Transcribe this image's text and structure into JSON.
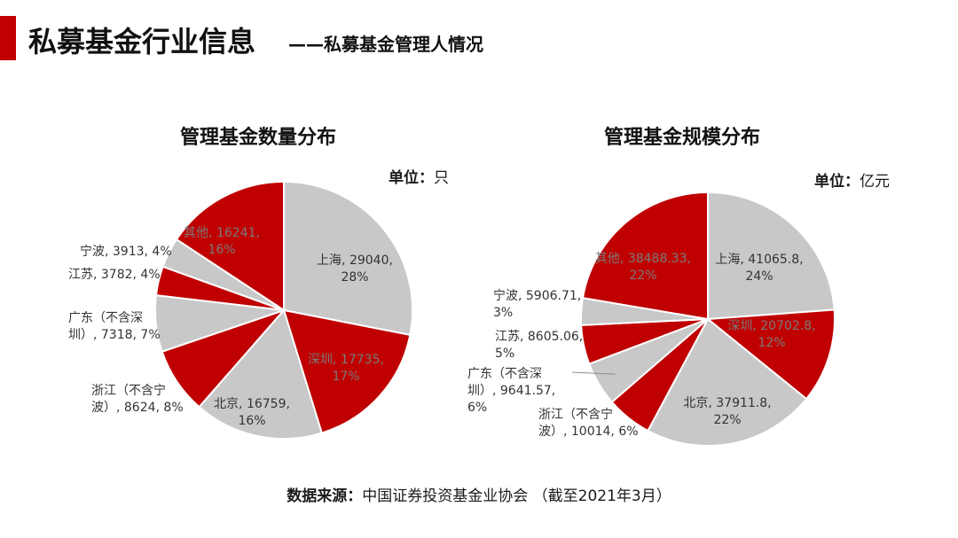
{
  "header": {
    "title": "私募基金行业信息",
    "subtitle": "——私募基金管理人情况"
  },
  "footer": {
    "source_label": "数据来源：",
    "source_text": "中国证券投资基金业协会 （截至2021年3月）"
  },
  "colors": {
    "red": "#c00000",
    "gray": "#c8c8c8",
    "accent": "#c00000"
  },
  "chart_data": [
    {
      "type": "pie",
      "title": "管理基金数量分布",
      "unit_label": "单位：",
      "unit_value": "只",
      "slices": [
        {
          "name": "上海",
          "value": 29040,
          "percent": "28%",
          "color": "gray",
          "label_lines": [
            "上海, 29040,",
            "28%"
          ]
        },
        {
          "name": "深圳",
          "value": 17735,
          "percent": "17%",
          "color": "red",
          "label_lines": [
            "深圳, 17735,",
            "17%"
          ]
        },
        {
          "name": "北京",
          "value": 16759,
          "percent": "16%",
          "color": "gray",
          "label_lines": [
            "北京, 16759,",
            "16%"
          ]
        },
        {
          "name": "浙江（不含宁波）",
          "value": 8624,
          "percent": "8%",
          "color": "red",
          "label_lines": [
            "浙江（不含宁",
            "波）, 8624, 8%"
          ]
        },
        {
          "name": "广东（不含深圳）",
          "value": 7318,
          "percent": "7%",
          "color": "gray",
          "label_lines": [
            "广东（不含深",
            "圳）, 7318, 7%"
          ]
        },
        {
          "name": "江苏",
          "value": 3782,
          "percent": "4%",
          "color": "red",
          "label_lines": [
            "江苏, 3782, 4%"
          ]
        },
        {
          "name": "宁波",
          "value": 3913,
          "percent": "4%",
          "color": "gray",
          "label_lines": [
            "宁波, 3913, 4%"
          ]
        },
        {
          "name": "其他",
          "value": 16241,
          "percent": "16%",
          "color": "red",
          "label_lines": [
            "其他, 16241,",
            "16%"
          ]
        }
      ]
    },
    {
      "type": "pie",
      "title": "管理基金规模分布",
      "unit_label": "单位：",
      "unit_value": "亿元",
      "slices": [
        {
          "name": "上海",
          "value": 41065.8,
          "percent": "24%",
          "color": "gray",
          "label_lines": [
            "上海, 41065.8,",
            "24%"
          ]
        },
        {
          "name": "深圳",
          "value": 20702.8,
          "percent": "12%",
          "color": "red",
          "label_lines": [
            "深圳, 20702.8,",
            "12%"
          ]
        },
        {
          "name": "北京",
          "value": 37911.8,
          "percent": "22%",
          "color": "gray",
          "label_lines": [
            "北京, 37911.8,",
            "22%"
          ]
        },
        {
          "name": "浙江（不含宁波）",
          "value": 10014,
          "percent": "6%",
          "color": "red",
          "label_lines": [
            "浙江（不含宁",
            "波）, 10014, 6%"
          ]
        },
        {
          "name": "广东（不含深圳）",
          "value": 9641.57,
          "percent": "6%",
          "color": "gray",
          "label_lines": [
            "广东（不含深",
            "圳）, 9641.57,",
            "6%"
          ]
        },
        {
          "name": "江苏",
          "value": 8605.06,
          "percent": "5%",
          "color": "red",
          "label_lines": [
            "江苏, 8605.06,",
            "5%"
          ]
        },
        {
          "name": "宁波",
          "value": 5906.71,
          "percent": "3%",
          "color": "gray",
          "label_lines": [
            "宁波, 5906.71,",
            "3%"
          ]
        },
        {
          "name": "其他",
          "value": 38488.33,
          "percent": "22%",
          "color": "red",
          "label_lines": [
            "其他, 38488.33,",
            "22%"
          ]
        }
      ]
    }
  ]
}
